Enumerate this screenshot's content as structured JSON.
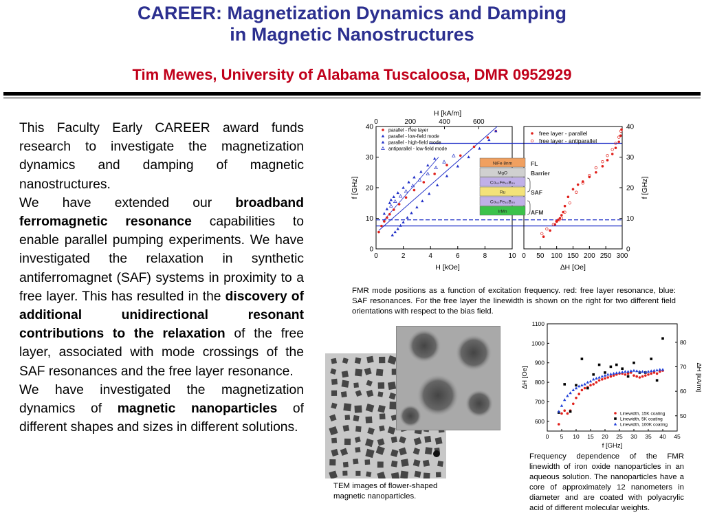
{
  "header": {
    "title_line1": "CAREER: Magnetization Dynamics and Damping",
    "title_line2": "in Magnetic Nanostructures",
    "subtitle": "Tim Mewes, University of Alabama Tuscaloosa, DMR 0952929"
  },
  "body": {
    "p1": "This Faculty Early CAREER award funds research to investigate the magnetization dynamics and damping of magnetic nanostructures.",
    "p2_a": "We have extended our ",
    "p2_b": "broadband ferromagnetic resonance",
    "p2_c": " capabilities to enable parallel pumping experiments. We have investigated the relaxation in synthetic antiferromagnet (SAF) systems in proximity to a free layer. This has resulted in the ",
    "p2_d": "discovery of additional unidirectional resonant contributions to the relaxation",
    "p2_e": " of the free layer, associated with mode crossings of the SAF resonances and the free layer resonance.",
    "p3_a": "We have investigated the magnetization dynamics of ",
    "p3_b": "magnetic nanoparticles",
    "p3_c": " of different shapes and sizes in different solutions."
  },
  "captions": {
    "fmr": "FMR mode positions as a function of excitation frequency. red: free layer resonance, blue: SAF resonances. For the free layer the linewidth is shown on the right for two different field orientations with respect to the bias field.",
    "tem": "TEM images of flower-shaped magnetic nanoparticles.",
    "linewidth": "Frequency dependence of the FMR linewidth of iron oxide nanoparticles in an aqueous solution. The nanoparticles have a core of approximately 12 nanometers in diameter  and are coated with polyacrylic acid of different molecular weights."
  },
  "stack_labels": {
    "layers": [
      "NiFe 8nm",
      "MgO",
      "Co₄₀Fe₄₀B₂₀",
      "Ru",
      "Co₄₀Fe₄₀B₂₀",
      "IrMn"
    ],
    "groups": [
      "FL",
      "Barrier",
      "SAF",
      "AFM"
    ]
  },
  "chart_data": [
    {
      "type": "scatter",
      "name_ref": "fmr-left",
      "xlabel": "H [kOe]",
      "ylabel": "f [GHz]",
      "top_label": "H [kA/m]",
      "xlim": [
        0,
        10
      ],
      "ylim": [
        0,
        40
      ],
      "xticks": [
        "0",
        "2",
        "4",
        "6",
        "8",
        "10"
      ],
      "yticks": [
        "0",
        "10",
        "20",
        "30",
        "40"
      ],
      "top_ticks": [
        "0",
        "200",
        "400",
        "600"
      ],
      "legend": [
        "parallel - free layer",
        "parallel - low-field mode",
        "parallel - high-field mode",
        "antiparallel -  low-field mode"
      ],
      "colors": {
        "red": "#e0201b",
        "blue": "#2130c8",
        "line": "#2130c8"
      },
      "series": [
        {
          "name": "parallel - free layer",
          "x": [
            0.2,
            0.4,
            0.6,
            0.8,
            1.0,
            1.3,
            1.7,
            2.2,
            2.8,
            3.5,
            4.3,
            5.2,
            6.2,
            7.2,
            8.2,
            8.8
          ],
          "y": [
            5.5,
            7.5,
            9,
            10.2,
            11.3,
            12.8,
            14.6,
            16.8,
            19.2,
            21.8,
            24.5,
            27.4,
            30.5,
            33.4,
            36.4,
            38.5
          ]
        },
        {
          "name": "parallel - low-field mode",
          "x": [
            0.6,
            0.8,
            1.0,
            1.1,
            1.3,
            1.6,
            2.0,
            2.4,
            2.8,
            3.3,
            3.8,
            4.3
          ],
          "y": [
            11.5,
            13,
            15,
            16,
            17,
            18.3,
            20,
            21.8,
            23.4,
            25.2,
            27.3,
            29.5
          ]
        },
        {
          "name": "parallel - high-field mode",
          "x": [
            1.2,
            1.4,
            1.6,
            1.8,
            2.0,
            2.3,
            2.6,
            3.0,
            3.4,
            3.9,
            4.5,
            5.2,
            6.0,
            6.8,
            7.6,
            8.3,
            8.8
          ],
          "y": [
            4.5,
            5.5,
            6.5,
            7.6,
            8.7,
            10.2,
            11.7,
            13.6,
            15.6,
            18,
            20.8,
            23.8,
            27,
            30,
            32.8,
            35.6,
            38.5
          ]
        },
        {
          "name": "antiparallel -  low-field mode",
          "x": [
            1.1,
            1.4,
            1.8,
            2.2,
            2.7,
            3.2,
            3.8,
            4.4,
            5.0,
            5.7
          ],
          "y": [
            14,
            15.5,
            17.2,
            18.8,
            20.6,
            22.5,
            24.5,
            26.5,
            28.4,
            30.4
          ]
        }
      ]
    },
    {
      "type": "scatter",
      "name_ref": "fmr-right",
      "xlabel": "∆H [Oe]",
      "ylabel": "f [GHz]",
      "xlim": [
        0,
        300
      ],
      "ylim": [
        0,
        40
      ],
      "xticks": [
        "0",
        "50",
        "100",
        "150",
        "200",
        "250",
        "300"
      ],
      "yticks": [
        "0",
        "10",
        "20",
        "30",
        "40"
      ],
      "legend": [
        "free layer - parallel",
        "free layer - antiparallel"
      ],
      "series": [
        {
          "name": "free layer - parallel",
          "x": [
            60,
            80,
            95,
            100,
            105,
            110,
            115,
            120,
            125,
            135,
            150,
            165,
            180,
            200,
            220,
            240,
            255,
            270,
            280,
            290,
            295,
            298
          ],
          "y": [
            4,
            6,
            8,
            9,
            9.5,
            10,
            11,
            12,
            14,
            17,
            19.5,
            21,
            22,
            23.5,
            25,
            27,
            29,
            31,
            33,
            35,
            37,
            39
          ]
        },
        {
          "name": "free layer - antiparallel",
          "x": [
            55,
            70,
            90,
            100,
            108,
            115,
            125,
            140,
            160,
            180,
            200,
            220,
            240,
            255,
            270,
            280,
            290,
            296
          ],
          "y": [
            5,
            6.5,
            8,
            9,
            9.5,
            10,
            12,
            15,
            18.5,
            21.5,
            24,
            26.5,
            28.5,
            30.5,
            32.5,
            34.5,
            36.5,
            38.5
          ]
        }
      ]
    },
    {
      "type": "scatter",
      "name_ref": "linewidth",
      "xlabel": "f [GHz]",
      "ylabel": "∆H [Oe]",
      "ylabel_right": "∆H [kA/m]",
      "xlim": [
        0,
        45
      ],
      "ylim": [
        550,
        1100
      ],
      "xticks": [
        "0",
        "5",
        "10",
        "15",
        "20",
        "25",
        "30",
        "35",
        "40",
        "45"
      ],
      "yticks": [
        "600",
        "700",
        "800",
        "900",
        "1000",
        "1100"
      ],
      "yticks_right": [
        "50",
        "60",
        "70",
        "80"
      ],
      "legend": [
        "Linewidth, 15K coating",
        "Linewidth, 5K coating",
        "Linewidth, 100K coating"
      ],
      "series": [
        {
          "name": "Linewidth, 15K coating",
          "x": [
            4,
            5,
            6,
            7,
            8,
            9,
            10,
            11,
            12,
            13,
            14,
            15,
            16,
            17,
            18,
            19,
            20,
            21,
            22,
            23,
            24,
            25,
            26,
            27,
            28,
            29,
            30,
            31,
            32,
            33,
            34,
            35,
            36,
            37,
            38,
            39,
            40
          ],
          "y": [
            585,
            640,
            655,
            640,
            655,
            690,
            720,
            740,
            760,
            770,
            775,
            785,
            790,
            800,
            810,
            815,
            820,
            825,
            830,
            835,
            840,
            845,
            845,
            840,
            845,
            850,
            835,
            830,
            825,
            830,
            835,
            840,
            845,
            850,
            845,
            855,
            860
          ]
        },
        {
          "name": "Linewidth, 5K coating",
          "x": [
            4,
            6,
            8,
            10,
            12,
            14,
            16,
            18,
            20,
            22,
            24,
            26,
            28,
            30,
            32,
            34,
            36,
            38,
            40
          ],
          "y": [
            645,
            790,
            650,
            785,
            920,
            770,
            840,
            890,
            850,
            880,
            890,
            870,
            830,
            900,
            850,
            850,
            920,
            810,
            1025
          ]
        },
        {
          "name": "Linewidth, 100K coating",
          "x": [
            4,
            5,
            6,
            7,
            8,
            9,
            10,
            11,
            12,
            13,
            14,
            15,
            16,
            17,
            18,
            19,
            20,
            21,
            22,
            23,
            24,
            25,
            26,
            27,
            28,
            29,
            30,
            31,
            32,
            33,
            34,
            35,
            36,
            37,
            38,
            39,
            40
          ],
          "y": [
            650,
            680,
            710,
            730,
            745,
            760,
            770,
            780,
            785,
            790,
            800,
            805,
            815,
            820,
            825,
            830,
            835,
            840,
            842,
            845,
            848,
            850,
            852,
            855,
            855,
            858,
            860,
            858,
            855,
            855,
            852,
            855,
            858,
            860,
            862,
            865,
            865
          ]
        }
      ]
    }
  ]
}
